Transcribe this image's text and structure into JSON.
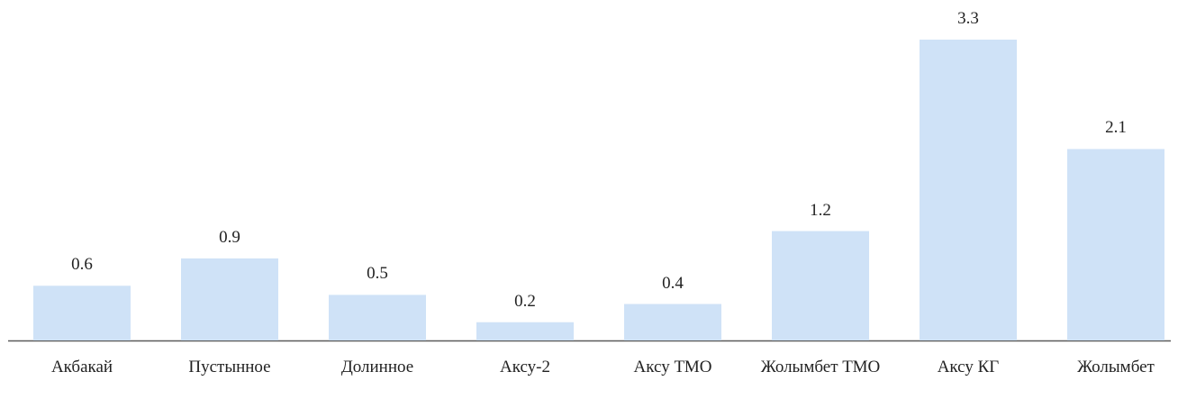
{
  "chart_data": {
    "type": "bar",
    "categories": [
      "Акбакай",
      "Пустынное",
      "Долинное",
      "Аксу-2",
      "Аксу ТМО",
      "Жолымбет ТМО",
      "Аксу КГ",
      "Жолымбет"
    ],
    "values": [
      0.6,
      0.9,
      0.5,
      0.2,
      0.4,
      1.2,
      3.3,
      2.1
    ],
    "color": "#cfe2f7",
    "ylim": [
      0,
      3.3
    ],
    "grid": false
  }
}
